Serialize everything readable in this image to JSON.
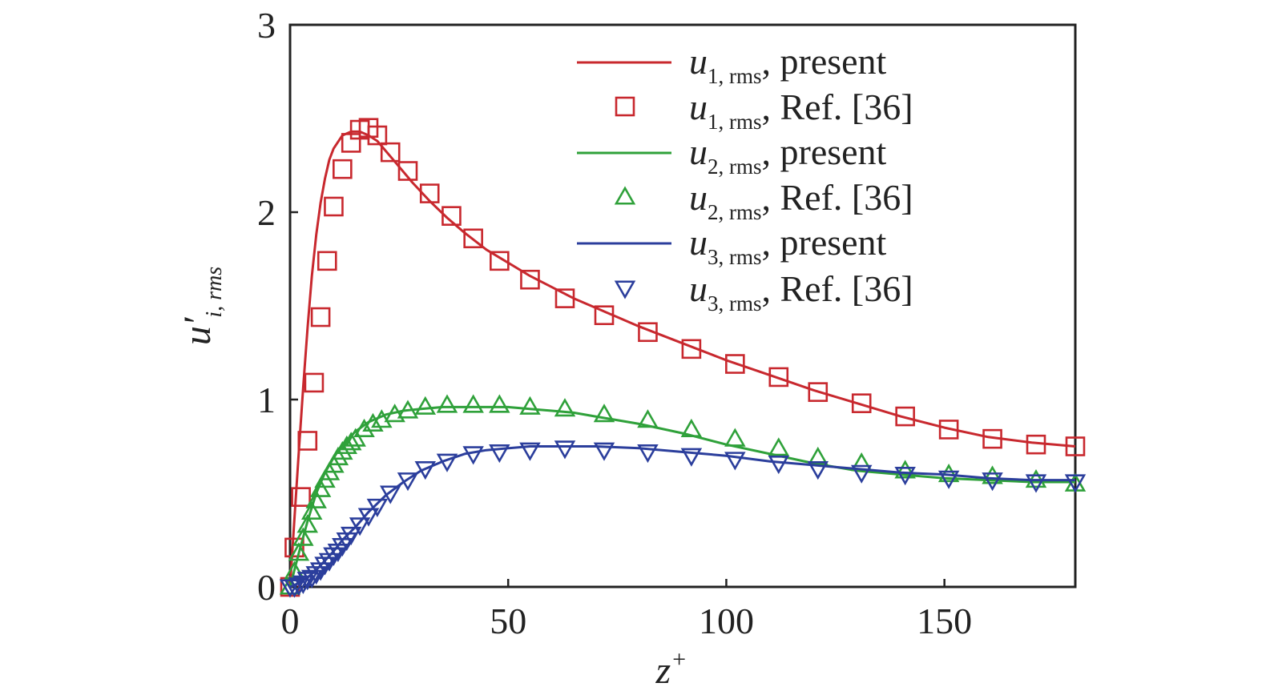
{
  "chart_data": {
    "type": "line",
    "xlabel": "z⁺",
    "ylabel": "u′i, rms",
    "xlim": [
      0,
      180
    ],
    "ylim": [
      0,
      3
    ],
    "xticks": [
      0,
      50,
      100,
      150
    ],
    "yticks": [
      0,
      1,
      2,
      3
    ],
    "grid": false,
    "legend_position": "top-right",
    "series": [
      {
        "name": "u1, rms, present",
        "kind": "line",
        "color": "#c8282e",
        "x": [
          0,
          1,
          2,
          3,
          4,
          5,
          6,
          7,
          8,
          9,
          10,
          12,
          14,
          16,
          18,
          20,
          24,
          28,
          32,
          36,
          40,
          45,
          50,
          55,
          60,
          65,
          70,
          80,
          90,
          100,
          110,
          120,
          130,
          140,
          150,
          160,
          170,
          180
        ],
        "y": [
          0,
          0.36,
          0.72,
          1.06,
          1.38,
          1.66,
          1.88,
          2.05,
          2.18,
          2.28,
          2.34,
          2.41,
          2.43,
          2.43,
          2.41,
          2.38,
          2.27,
          2.16,
          2.06,
          1.97,
          1.89,
          1.8,
          1.73,
          1.66,
          1.6,
          1.54,
          1.49,
          1.39,
          1.3,
          1.21,
          1.13,
          1.05,
          0.98,
          0.91,
          0.85,
          0.8,
          0.77,
          0.75
        ]
      },
      {
        "name": "u1, rms, Ref. [36]",
        "kind": "marker",
        "marker": "square",
        "color": "#c8282e",
        "x": [
          0,
          1,
          2.5,
          4,
          5.5,
          7,
          8.5,
          10,
          12,
          14,
          16,
          18,
          20,
          23,
          27,
          32,
          37,
          42,
          48,
          55,
          63,
          72,
          82,
          92,
          102,
          112,
          121,
          131,
          141,
          151,
          161,
          171,
          180
        ],
        "y": [
          0,
          0.21,
          0.48,
          0.78,
          1.09,
          1.44,
          1.74,
          2.03,
          2.23,
          2.37,
          2.44,
          2.45,
          2.41,
          2.32,
          2.22,
          2.1,
          1.98,
          1.86,
          1.74,
          1.64,
          1.54,
          1.45,
          1.36,
          1.27,
          1.19,
          1.12,
          1.04,
          0.98,
          0.91,
          0.84,
          0.79,
          0.76,
          0.75
        ]
      },
      {
        "name": "u2, rms, present",
        "kind": "line",
        "color": "#2fa13a",
        "x": [
          0,
          2,
          4,
          6,
          8,
          10,
          12,
          15,
          18,
          22,
          26,
          30,
          35,
          40,
          45,
          50,
          55,
          60,
          65,
          70,
          80,
          90,
          100,
          110,
          120,
          130,
          140,
          150,
          160,
          170,
          180
        ],
        "y": [
          0,
          0.18,
          0.35,
          0.5,
          0.61,
          0.69,
          0.76,
          0.83,
          0.88,
          0.92,
          0.94,
          0.95,
          0.96,
          0.96,
          0.96,
          0.96,
          0.95,
          0.94,
          0.93,
          0.91,
          0.87,
          0.82,
          0.76,
          0.71,
          0.66,
          0.62,
          0.6,
          0.58,
          0.57,
          0.56,
          0.56
        ]
      },
      {
        "name": "u2, rms, Ref. [36]",
        "kind": "marker",
        "marker": "triangle-up",
        "color": "#2fa13a",
        "x": [
          0,
          1,
          2,
          3,
          4,
          5,
          6,
          7,
          8,
          9,
          10,
          11,
          12,
          13,
          14,
          15,
          17,
          19,
          21,
          24,
          27,
          31,
          36,
          42,
          48,
          55,
          63,
          72,
          82,
          92,
          102,
          112,
          121,
          131,
          141,
          151,
          161,
          171,
          180
        ],
        "y": [
          0,
          0.08,
          0.18,
          0.26,
          0.33,
          0.4,
          0.46,
          0.52,
          0.57,
          0.61,
          0.65,
          0.69,
          0.72,
          0.75,
          0.77,
          0.79,
          0.84,
          0.87,
          0.89,
          0.92,
          0.94,
          0.96,
          0.97,
          0.97,
          0.97,
          0.96,
          0.95,
          0.92,
          0.89,
          0.84,
          0.79,
          0.74,
          0.69,
          0.66,
          0.62,
          0.6,
          0.59,
          0.57,
          0.55
        ]
      },
      {
        "name": "u3, rms, present",
        "kind": "line",
        "color": "#2b3e9c",
        "x": [
          0,
          2,
          4,
          6,
          8,
          10,
          12,
          15,
          18,
          22,
          26,
          30,
          35,
          40,
          45,
          50,
          55,
          60,
          65,
          70,
          80,
          90,
          100,
          110,
          120,
          130,
          140,
          150,
          160,
          170,
          180
        ],
        "y": [
          0,
          0.02,
          0.05,
          0.09,
          0.14,
          0.19,
          0.25,
          0.32,
          0.4,
          0.49,
          0.56,
          0.62,
          0.67,
          0.71,
          0.73,
          0.74,
          0.75,
          0.75,
          0.75,
          0.75,
          0.74,
          0.72,
          0.7,
          0.67,
          0.65,
          0.63,
          0.61,
          0.6,
          0.58,
          0.57,
          0.57
        ]
      },
      {
        "name": "u3, rms, Ref. [36]",
        "kind": "marker",
        "marker": "triangle-down",
        "color": "#2b3e9c",
        "x": [
          0,
          1,
          2,
          3,
          4,
          5,
          6,
          7,
          8,
          9,
          10,
          11,
          12,
          13,
          14,
          16,
          18,
          20,
          23,
          27,
          31,
          36,
          42,
          48,
          55,
          63,
          72,
          82,
          92,
          102,
          112,
          121,
          131,
          141,
          151,
          161,
          171,
          180
        ],
        "y": [
          0,
          0.0,
          0.01,
          0.02,
          0.04,
          0.05,
          0.07,
          0.09,
          0.12,
          0.14,
          0.17,
          0.19,
          0.22,
          0.25,
          0.28,
          0.33,
          0.38,
          0.43,
          0.5,
          0.57,
          0.63,
          0.67,
          0.71,
          0.72,
          0.73,
          0.74,
          0.73,
          0.72,
          0.7,
          0.68,
          0.66,
          0.63,
          0.61,
          0.6,
          0.58,
          0.57,
          0.56,
          0.56
        ]
      }
    ],
    "legend": [
      {
        "symbol": "u",
        "sub": "1, rms",
        "text": ", present"
      },
      {
        "symbol": "u",
        "sub": "1, rms",
        "text": ", Ref. [36]"
      },
      {
        "symbol": "u",
        "sub": "2, rms",
        "text": ", present"
      },
      {
        "symbol": "u",
        "sub": "2, rms",
        "text": ", Ref. [36]"
      },
      {
        "symbol": "u",
        "sub": "3, rms",
        "text": ", present"
      },
      {
        "symbol": "u",
        "sub": "3, rms",
        "text": ", Ref. [36]"
      }
    ],
    "axis_labels": {
      "x_main": "z",
      "x_sup": "+",
      "y_main": "u′",
      "y_sub": "i, rms"
    }
  }
}
